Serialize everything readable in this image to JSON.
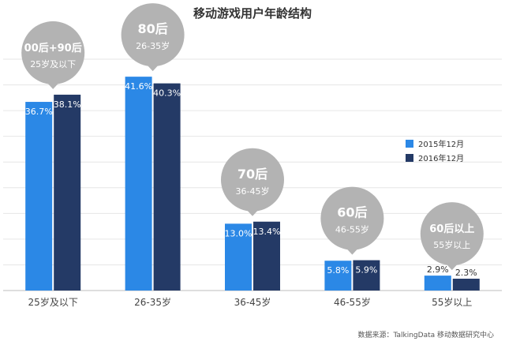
{
  "chart_data": {
    "type": "bar",
    "title": "移动游戏用户年龄结构",
    "categories": [
      "25岁及以下",
      "26-35岁",
      "36-45岁",
      "46-55岁",
      "55岁以上"
    ],
    "series": [
      {
        "name": "2015年12月",
        "values": [
          36.7,
          41.6,
          13.0,
          5.8,
          2.9
        ],
        "labels": [
          "36.7%",
          "41.6%",
          "13.0%",
          "5.8%",
          "2.9%"
        ],
        "color": "#2b88e6"
      },
      {
        "name": "2016年12月",
        "values": [
          38.1,
          40.3,
          13.4,
          5.9,
          2.3
        ],
        "labels": [
          "38.1%",
          "40.3%",
          "13.4%",
          "5.9%",
          "2.3%"
        ],
        "color": "#243a66"
      }
    ],
    "ylim": [
      0,
      45
    ],
    "grid": true,
    "legend": "right",
    "callouts": [
      {
        "line1": "00后+90后",
        "line2": "25岁及以下"
      },
      {
        "line1": "80后",
        "line2": "26-35岁"
      },
      {
        "line1": "70后",
        "line2": "36-45岁"
      },
      {
        "line1": "60后",
        "line2": "46-55岁"
      },
      {
        "line1": "60后以上",
        "line2": "55岁以上"
      }
    ],
    "source": "数据来源：TalkingData 移动数据研究中心"
  },
  "colors": {
    "callout": "#b3b3b3",
    "grid": "#e6e6e6",
    "axis": "#bdbdbd",
    "text": "#444444"
  }
}
